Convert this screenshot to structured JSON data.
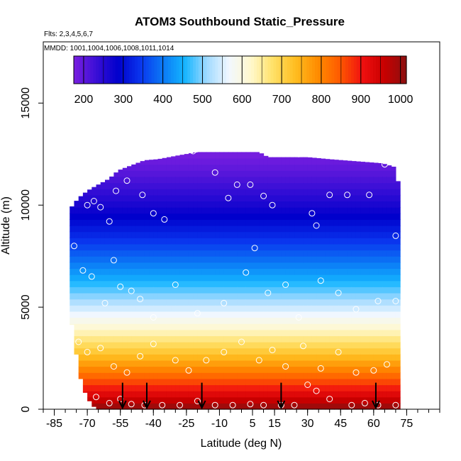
{
  "chart_data": {
    "type": "heatmap",
    "title": "ATOM3 Southbound Static_Pressure",
    "subtitle_flights": "Flts: 2,3,4,5,6,7",
    "subtitle_dates": "MMDD: 1001,1004,1006,1008,1011,1014",
    "xlabel": "Latitude (deg N)",
    "ylabel": "Altitude (m)",
    "xlim": [
      -90,
      90
    ],
    "ylim": [
      0,
      18000
    ],
    "x_tick_labels": [
      "-85",
      "-70",
      "-55",
      "-40",
      "-25",
      "-10",
      "5",
      "15",
      "30",
      "45",
      "60",
      "75"
    ],
    "y_tick_labels": [
      "0",
      "5000",
      "10000",
      "15000"
    ],
    "colorbar": {
      "range": [
        175,
        1015
      ],
      "tick_labels": [
        "200",
        "300",
        "400",
        "500",
        "600",
        "700",
        "800",
        "900",
        "1000"
      ],
      "colors": [
        "#7a1fe0",
        "#3b0fd6",
        "#0000cc",
        "#0a35ee",
        "#0b78f5",
        "#14b5ff",
        "#9fd9ff",
        "#f2f8ff",
        "#fff8cc",
        "#ffe066",
        "#ffbd20",
        "#ff8c00",
        "#ff5a00",
        "#f01010",
        "#c80000",
        "#8b1010"
      ]
    },
    "profile_top_altitude": [
      [
        -78,
        9800
      ],
      [
        -74,
        10350
      ],
      [
        -70,
        10700
      ],
      [
        -66,
        10950
      ],
      [
        -60,
        11300
      ],
      [
        -56,
        11700
      ],
      [
        -50,
        11950
      ],
      [
        -44,
        12200
      ],
      [
        -38,
        12250
      ],
      [
        -28,
        12450
      ],
      [
        -20,
        12600
      ],
      [
        0,
        12600
      ],
      [
        8,
        12600
      ],
      [
        12,
        12350
      ],
      [
        30,
        12350
      ],
      [
        40,
        12250
      ],
      [
        52,
        12150
      ],
      [
        58,
        12100
      ],
      [
        64,
        12050
      ],
      [
        70,
        11850
      ],
      [
        72,
        10500
      ]
    ],
    "profile_bottom_altitude": [
      [
        -78,
        4800
      ],
      [
        -76,
        3500
      ],
      [
        -74,
        1900
      ],
      [
        -72,
        1100
      ],
      [
        -70,
        550
      ],
      [
        -66,
        0
      ],
      [
        72,
        0
      ]
    ],
    "observation_points": [
      [
        -70,
        10000
      ],
      [
        -67,
        10200
      ],
      [
        -64,
        9900
      ],
      [
        -60,
        9200
      ],
      [
        -57,
        10700
      ],
      [
        -52,
        11200
      ],
      [
        -45,
        10500
      ],
      [
        -40,
        9600
      ],
      [
        -35,
        9300
      ],
      [
        -22,
        12650
      ],
      [
        -12,
        11600
      ],
      [
        -6,
        10350
      ],
      [
        -2,
        11000
      ],
      [
        4,
        11000
      ],
      [
        10,
        10450
      ],
      [
        14,
        10000
      ],
      [
        26,
        12500
      ],
      [
        32,
        9600
      ],
      [
        34,
        9000
      ],
      [
        40,
        10500
      ],
      [
        48,
        10500
      ],
      [
        58,
        10500
      ],
      [
        65,
        12000
      ],
      [
        70,
        8500
      ],
      [
        -76,
        8000
      ],
      [
        -72,
        6800
      ],
      [
        -68,
        6500
      ],
      [
        -62,
        5200
      ],
      [
        -58,
        7300
      ],
      [
        -55,
        6000
      ],
      [
        -50,
        5800
      ],
      [
        -46,
        5400
      ],
      [
        -40,
        4500
      ],
      [
        -30,
        6100
      ],
      [
        -20,
        4700
      ],
      [
        -8,
        5200
      ],
      [
        2,
        6700
      ],
      [
        6,
        7900
      ],
      [
        12,
        5700
      ],
      [
        20,
        6100
      ],
      [
        26,
        4500
      ],
      [
        36,
        6300
      ],
      [
        44,
        5700
      ],
      [
        52,
        4900
      ],
      [
        62,
        5300
      ],
      [
        70,
        5300
      ],
      [
        -74,
        3300
      ],
      [
        -70,
        2800
      ],
      [
        -64,
        3000
      ],
      [
        -58,
        2100
      ],
      [
        -52,
        1800
      ],
      [
        -46,
        2600
      ],
      [
        -40,
        3200
      ],
      [
        -30,
        2400
      ],
      [
        -24,
        1900
      ],
      [
        -16,
        2400
      ],
      [
        -8,
        2800
      ],
      [
        0,
        3300
      ],
      [
        8,
        2400
      ],
      [
        14,
        2900
      ],
      [
        20,
        2100
      ],
      [
        28,
        3100
      ],
      [
        36,
        2000
      ],
      [
        44,
        2800
      ],
      [
        52,
        1800
      ],
      [
        60,
        1900
      ],
      [
        66,
        2200
      ],
      [
        -78,
        300
      ],
      [
        -72,
        200
      ],
      [
        -66,
        600
      ],
      [
        -60,
        300
      ],
      [
        -55,
        500
      ],
      [
        -50,
        250
      ],
      [
        -44,
        200
      ],
      [
        -36,
        200
      ],
      [
        -28,
        200
      ],
      [
        -20,
        400
      ],
      [
        -12,
        200
      ],
      [
        -4,
        200
      ],
      [
        4,
        250
      ],
      [
        10,
        200
      ],
      [
        18,
        200
      ],
      [
        24,
        200
      ],
      [
        30,
        1200
      ],
      [
        34,
        900
      ],
      [
        40,
        500
      ],
      [
        50,
        200
      ],
      [
        56,
        300
      ],
      [
        62,
        200
      ],
      [
        70,
        200
      ]
    ],
    "flight_markers_latitude": [
      -54,
      -43,
      -18,
      18,
      61
    ]
  }
}
